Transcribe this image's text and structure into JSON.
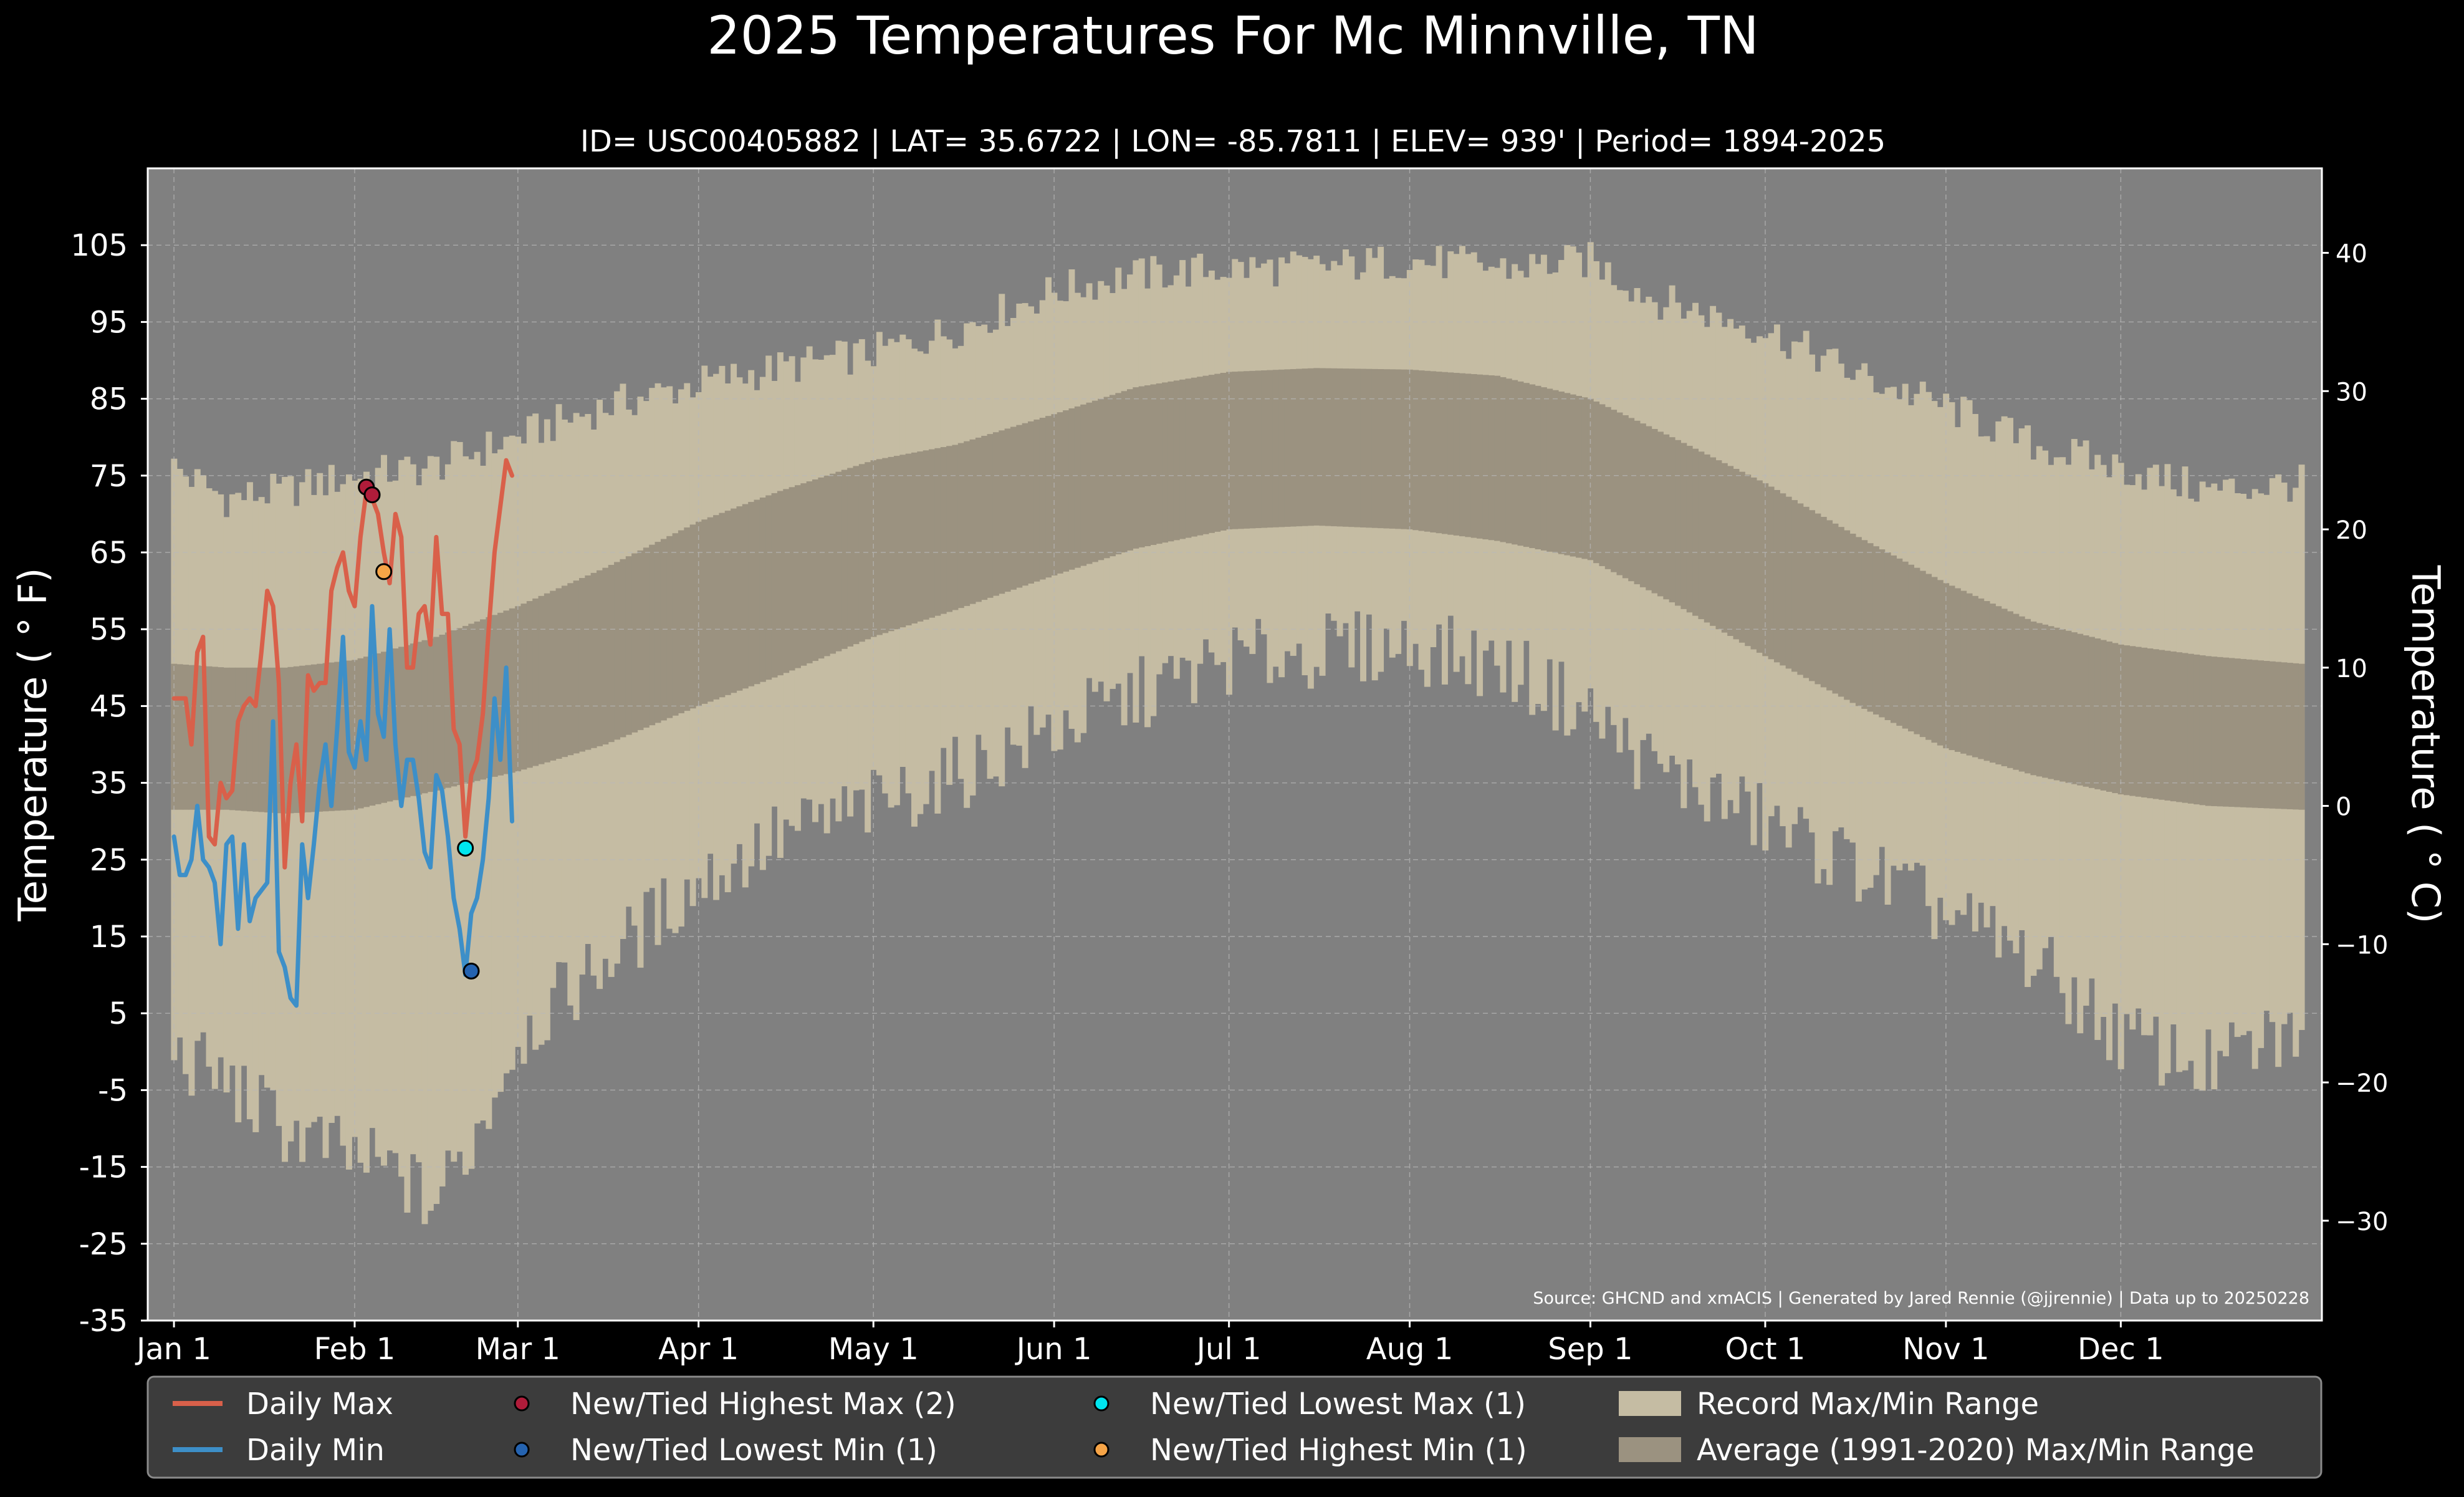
{
  "chart_data": {
    "type": "line",
    "title": "2025 Temperatures For Mc Minnville, TN",
    "subtitle": "ID= USC00405882 | LAT= 35.6722 | LON= -85.7811 | ELEV= 939' | Period= 1894-2025",
    "ylabel_left": "Temperature ($^\\circ$F)",
    "ylabel_left_display": "Temperature ( ° F)",
    "ylabel_right_display": "Temperature ( ° C)",
    "source": "Source: GHCND and xmACIS | Generated by Jared Rennie (@jjrennie) | Data up to 20250228",
    "ylim": [
      -35,
      115
    ],
    "y_ticks": [
      105,
      95,
      85,
      75,
      65,
      55,
      45,
      35,
      25,
      15,
      5,
      -5,
      -15,
      -25,
      -35
    ],
    "y_ticks_c": [
      40,
      30,
      20,
      10,
      0,
      -10,
      -20,
      -30
    ],
    "y_ticks_c_labels": [
      "40",
      "30",
      "20",
      "10",
      "0",
      "−10",
      "−20",
      "−30"
    ],
    "x_ticks": [
      {
        "label": "Jan 1",
        "day": 1
      },
      {
        "label": "Feb 1",
        "day": 32
      },
      {
        "label": "Mar 1",
        "day": 60
      },
      {
        "label": "Apr 1",
        "day": 91
      },
      {
        "label": "May 1",
        "day": 121
      },
      {
        "label": "Jun 1",
        "day": 152
      },
      {
        "label": "Jul 1",
        "day": 182
      },
      {
        "label": "Aug 1",
        "day": 213
      },
      {
        "label": "Sep 1",
        "day": 244
      },
      {
        "label": "Oct 1",
        "day": 274
      },
      {
        "label": "Nov 1",
        "day": 305
      },
      {
        "label": "Dec 1",
        "day": 335
      }
    ],
    "xlim": [
      -3.5,
      369.5
    ],
    "grid": true,
    "record_max_anchors": [
      [
        1,
        76
      ],
      [
        10,
        72
      ],
      [
        20,
        73
      ],
      [
        32,
        75
      ],
      [
        45,
        76
      ],
      [
        60,
        80
      ],
      [
        75,
        84
      ],
      [
        91,
        87
      ],
      [
        105,
        89
      ],
      [
        121,
        91
      ],
      [
        135,
        94
      ],
      [
        152,
        99
      ],
      [
        165,
        101
      ],
      [
        182,
        102
      ],
      [
        195,
        102
      ],
      [
        213,
        103
      ],
      [
        230,
        102
      ],
      [
        244,
        103
      ],
      [
        255,
        98
      ],
      [
        274,
        94
      ],
      [
        290,
        88
      ],
      [
        305,
        84
      ],
      [
        320,
        79
      ],
      [
        335,
        76
      ],
      [
        350,
        73
      ],
      [
        366,
        74
      ]
    ],
    "record_min_anchors": [
      [
        1,
        0
      ],
      [
        10,
        -4
      ],
      [
        20,
        -10
      ],
      [
        32,
        -14
      ],
      [
        40,
        -16
      ],
      [
        45,
        -20
      ],
      [
        52,
        -12
      ],
      [
        60,
        2
      ],
      [
        75,
        12
      ],
      [
        91,
        22
      ],
      [
        105,
        28
      ],
      [
        121,
        32
      ],
      [
        135,
        36
      ],
      [
        152,
        42
      ],
      [
        165,
        46
      ],
      [
        182,
        51
      ],
      [
        195,
        52
      ],
      [
        213,
        53
      ],
      [
        230,
        50
      ],
      [
        244,
        44
      ],
      [
        255,
        37
      ],
      [
        274,
        30
      ],
      [
        290,
        24
      ],
      [
        305,
        18
      ],
      [
        320,
        12
      ],
      [
        335,
        2
      ],
      [
        350,
        -2
      ],
      [
        366,
        3
      ]
    ],
    "avg_max_anchors": [
      [
        1,
        50.5
      ],
      [
        10,
        50
      ],
      [
        20,
        50
      ],
      [
        32,
        51
      ],
      [
        46,
        54
      ],
      [
        60,
        58
      ],
      [
        75,
        63
      ],
      [
        91,
        69
      ],
      [
        105,
        73
      ],
      [
        121,
        77
      ],
      [
        135,
        79
      ],
      [
        152,
        83
      ],
      [
        166,
        86.5
      ],
      [
        182,
        88.5
      ],
      [
        197,
        89
      ],
      [
        213,
        88.8
      ],
      [
        228,
        88
      ],
      [
        244,
        85
      ],
      [
        258,
        80
      ],
      [
        274,
        74
      ],
      [
        290,
        67
      ],
      [
        305,
        61
      ],
      [
        320,
        56
      ],
      [
        335,
        53
      ],
      [
        350,
        51.5
      ],
      [
        366,
        50.5
      ]
    ],
    "avg_min_anchors": [
      [
        1,
        31.5
      ],
      [
        10,
        31.5
      ],
      [
        20,
        31
      ],
      [
        32,
        31.5
      ],
      [
        46,
        34
      ],
      [
        60,
        36.5
      ],
      [
        75,
        40
      ],
      [
        91,
        45
      ],
      [
        105,
        49
      ],
      [
        121,
        54
      ],
      [
        135,
        57.5
      ],
      [
        152,
        62
      ],
      [
        166,
        65.5
      ],
      [
        182,
        68
      ],
      [
        197,
        68.5
      ],
      [
        213,
        68
      ],
      [
        228,
        66.5
      ],
      [
        244,
        64
      ],
      [
        258,
        58.5
      ],
      [
        274,
        51.5
      ],
      [
        290,
        45
      ],
      [
        305,
        39.5
      ],
      [
        320,
        36
      ],
      [
        335,
        33.5
      ],
      [
        350,
        32
      ],
      [
        366,
        31.5
      ]
    ],
    "series": [
      {
        "name": "Daily Max",
        "color": "#d9604a",
        "x": [
          1,
          2,
          3,
          4,
          5,
          6,
          7,
          8,
          9,
          10,
          11,
          12,
          13,
          14,
          15,
          16,
          17,
          18,
          19,
          20,
          21,
          22,
          23,
          24,
          25,
          26,
          27,
          28,
          29,
          30,
          31,
          32,
          33,
          34,
          35,
          36,
          37,
          38,
          39,
          40,
          41,
          42,
          43,
          44,
          45,
          46,
          47,
          48,
          49,
          50,
          51,
          52,
          53,
          54,
          55,
          56,
          57,
          58,
          59
        ],
        "values": [
          46,
          46,
          46,
          40,
          52,
          54,
          28,
          27,
          35,
          33,
          34,
          43,
          45,
          46,
          45,
          52,
          60,
          58,
          48,
          24,
          35,
          40,
          30,
          49,
          47,
          48,
          48,
          60,
          63,
          65,
          60,
          58,
          67,
          73,
          72,
          70,
          65,
          61,
          70,
          67,
          50,
          50,
          57,
          58,
          53,
          67,
          57,
          57,
          42,
          40,
          28,
          36,
          38,
          44,
          55,
          65,
          71,
          77,
          75
        ]
      },
      {
        "name": "Daily Min",
        "color": "#3d8fc8",
        "x": [
          1,
          2,
          3,
          4,
          5,
          6,
          7,
          8,
          9,
          10,
          11,
          12,
          13,
          14,
          15,
          16,
          17,
          18,
          19,
          20,
          21,
          22,
          23,
          24,
          25,
          26,
          27,
          28,
          29,
          30,
          31,
          32,
          33,
          34,
          35,
          36,
          37,
          38,
          39,
          40,
          41,
          42,
          43,
          44,
          45,
          46,
          47,
          48,
          49,
          50,
          51,
          52,
          53,
          54,
          55,
          56,
          57,
          58,
          59
        ],
        "values": [
          28,
          23,
          23,
          25,
          32,
          25,
          24,
          22,
          14,
          27,
          28,
          16,
          27,
          17,
          20,
          21,
          22,
          43,
          13,
          11,
          7,
          6,
          27,
          20,
          27,
          35,
          40,
          32,
          42,
          54,
          39,
          37,
          43,
          38,
          58,
          44,
          41,
          55,
          40,
          32,
          38,
          38,
          33,
          26,
          24,
          36,
          34,
          28,
          20,
          16,
          10,
          18,
          20,
          25,
          33,
          46,
          38,
          50,
          30
        ]
      }
    ],
    "markers": [
      {
        "name": "New/Tied Highest Max",
        "color": "#b01c3a",
        "points": [
          [
            34,
            73.5
          ],
          [
            35,
            72.5
          ]
        ]
      },
      {
        "name": "New/Tied Lowest Min",
        "color": "#2563b0",
        "points": [
          [
            52,
            10.5
          ]
        ]
      },
      {
        "name": "New/Tied Lowest Max",
        "color": "#00e5ef",
        "points": [
          [
            51,
            26.5
          ]
        ]
      },
      {
        "name": "New/Tied Highest Min",
        "color": "#f6a447",
        "points": [
          [
            37,
            62.5
          ]
        ]
      }
    ],
    "legend": {
      "placement": "bottom",
      "items": [
        {
          "label": "Daily Max",
          "kind": "line",
          "color": "#d9604a"
        },
        {
          "label": "Daily Min",
          "kind": "line",
          "color": "#3d8fc8"
        },
        {
          "label": "New/Tied Highest Max (2)",
          "kind": "dot",
          "color": "#b01c3a"
        },
        {
          "label": "New/Tied Lowest Min (1)",
          "kind": "dot",
          "color": "#2563b0"
        },
        {
          "label": "New/Tied Lowest Max (1)",
          "kind": "dot",
          "color": "#00e5ef"
        },
        {
          "label": "New/Tied Highest Min (1)",
          "kind": "dot",
          "color": "#f6a447"
        },
        {
          "label": "Record Max/Min Range",
          "kind": "patch",
          "color": "#c5bca3"
        },
        {
          "label": "Average (1991-2020) Max/Min Range",
          "kind": "patch",
          "color": "#9b9280"
        }
      ]
    },
    "colors": {
      "background": "#000000",
      "plot_background": "#808080",
      "record_range": "#c5bca3",
      "average_range": "#9b9280",
      "grid": "#b8b8b8",
      "legend_background": "#3c3c3c"
    }
  }
}
